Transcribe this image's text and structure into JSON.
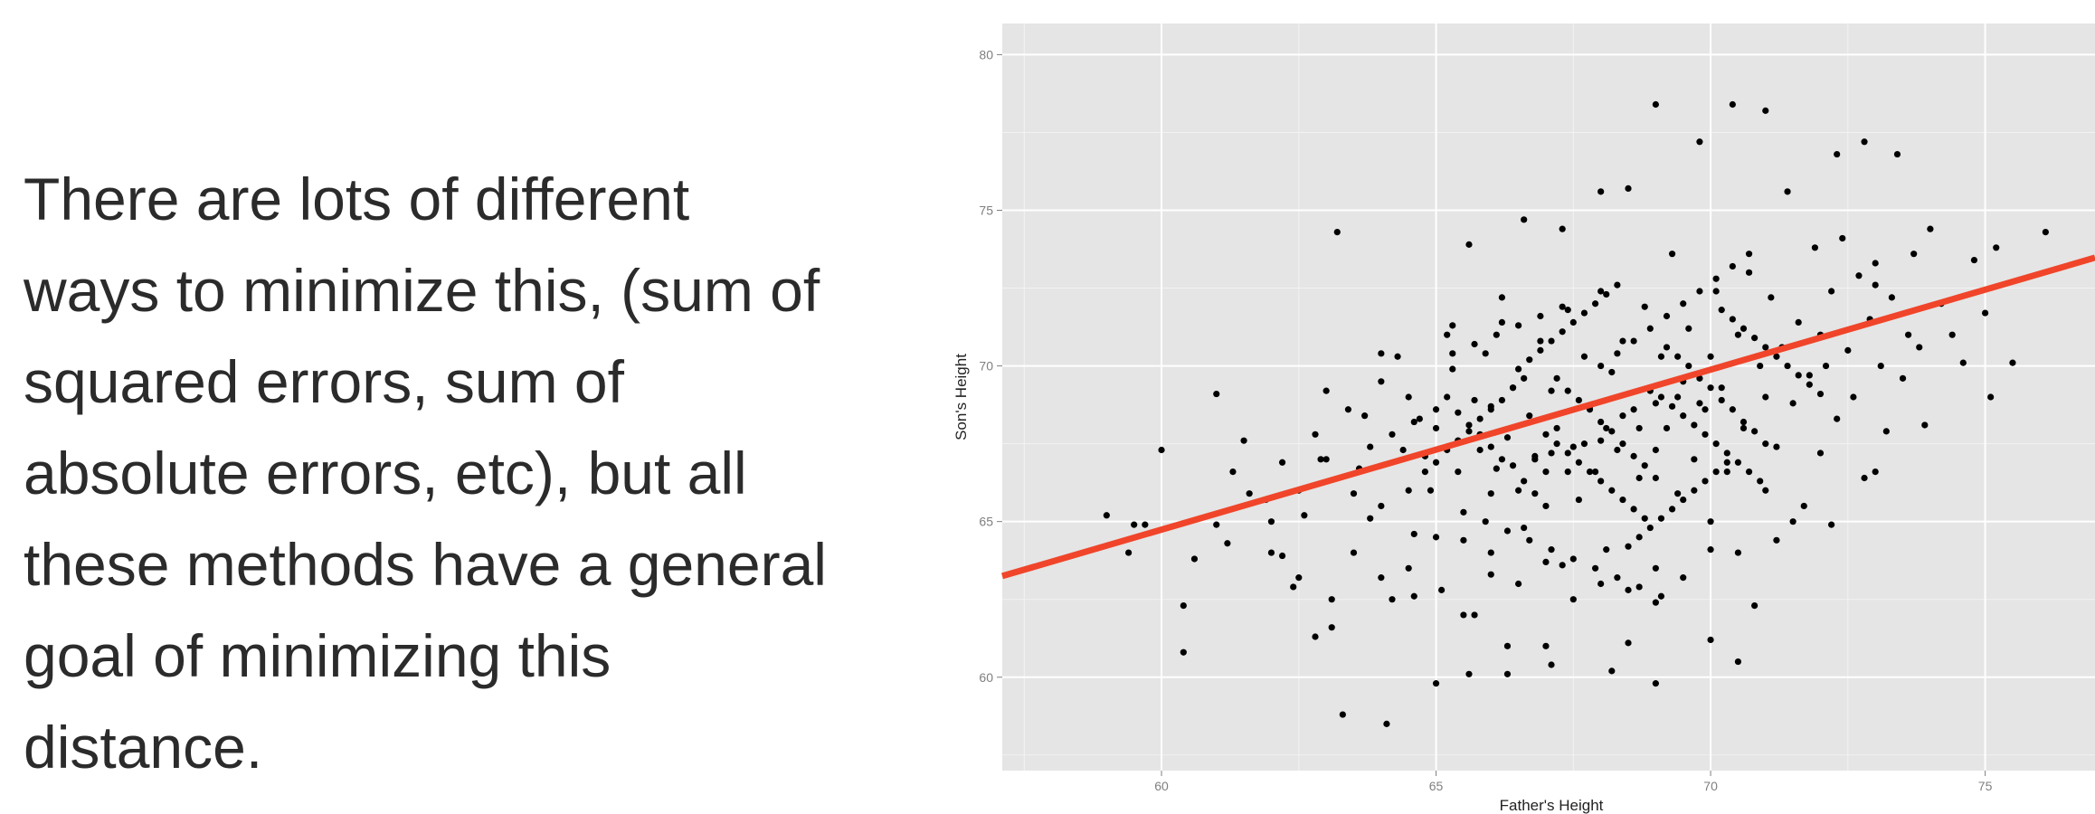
{
  "slide": {
    "text_lines": [
      "There are lots of different",
      "ways to minimize this, (sum of",
      "squared errors, sum of",
      "absolute errors, etc), but all",
      "these methods have a general",
      "goal of minimizing this",
      "distance."
    ]
  },
  "chart_data": {
    "type": "scatter",
    "title": "",
    "xlabel": "Father's Height",
    "ylabel": "Son's Height",
    "xlim": [
      57.1,
      77.0
    ],
    "ylim": [
      57.0,
      81.0
    ],
    "x_ticks": [
      60,
      65,
      70,
      75
    ],
    "y_ticks": [
      60,
      65,
      70,
      75,
      80
    ],
    "grid": true,
    "background_color": "#e5e5e5",
    "point_color": "#000000",
    "regression_line": {
      "color": "#f0452a",
      "intercept": 33.9,
      "slope": 0.514
    },
    "points": [
      [
        59.0,
        65.2
      ],
      [
        59.5,
        64.9
      ],
      [
        59.7,
        64.9
      ],
      [
        59.4,
        64.0
      ],
      [
        60.0,
        67.3
      ],
      [
        60.4,
        62.3
      ],
      [
        60.4,
        60.8
      ],
      [
        61.0,
        69.1
      ],
      [
        61.3,
        66.6
      ],
      [
        61.2,
        64.3
      ],
      [
        61.5,
        67.6
      ],
      [
        61.9,
        65.7
      ],
      [
        62.0,
        64.0
      ],
      [
        62.2,
        63.9
      ],
      [
        62.5,
        63.2
      ],
      [
        62.6,
        65.2
      ],
      [
        62.8,
        61.3
      ],
      [
        62.9,
        67.0
      ],
      [
        63.0,
        69.2
      ],
      [
        63.1,
        62.5
      ],
      [
        63.2,
        74.3
      ],
      [
        63.3,
        58.8
      ],
      [
        63.5,
        65.9
      ],
      [
        63.6,
        66.7
      ],
      [
        63.7,
        68.4
      ],
      [
        63.8,
        65.1
      ],
      [
        64.0,
        70.4
      ],
      [
        64.0,
        63.2
      ],
      [
        64.1,
        58.5
      ],
      [
        64.2,
        62.5
      ],
      [
        64.4,
        67.3
      ],
      [
        64.5,
        69.0
      ],
      [
        64.5,
        66.0
      ],
      [
        64.6,
        64.6
      ],
      [
        64.7,
        68.3
      ],
      [
        64.8,
        67.1
      ],
      [
        64.9,
        66.0
      ],
      [
        65.0,
        68.6
      ],
      [
        65.0,
        59.8
      ],
      [
        65.1,
        62.8
      ],
      [
        65.2,
        71.0
      ],
      [
        65.3,
        69.9
      ],
      [
        65.4,
        67.6
      ],
      [
        65.4,
        66.6
      ],
      [
        65.5,
        64.4
      ],
      [
        65.6,
        73.9
      ],
      [
        65.7,
        68.9
      ],
      [
        65.7,
        62.0
      ],
      [
        65.8,
        67.3
      ],
      [
        65.9,
        70.4
      ],
      [
        66.0,
        68.7
      ],
      [
        66.0,
        65.9
      ],
      [
        66.0,
        63.3
      ],
      [
        66.1,
        66.7
      ],
      [
        66.2,
        71.4
      ],
      [
        66.3,
        67.7
      ],
      [
        66.3,
        60.1
      ],
      [
        66.4,
        69.3
      ],
      [
        66.5,
        66.0
      ],
      [
        66.6,
        74.7
      ],
      [
        66.6,
        64.8
      ],
      [
        66.7,
        68.4
      ],
      [
        66.8,
        67.1
      ],
      [
        66.9,
        70.8
      ],
      [
        67.0,
        66.6
      ],
      [
        67.0,
        61.0
      ],
      [
        67.1,
        69.2
      ],
      [
        67.2,
        68.0
      ],
      [
        67.3,
        63.6
      ],
      [
        67.4,
        71.8
      ],
      [
        67.5,
        67.4
      ],
      [
        67.6,
        65.7
      ],
      [
        67.7,
        70.3
      ],
      [
        67.8,
        68.7
      ],
      [
        67.9,
        66.6
      ],
      [
        68.0,
        72.4
      ],
      [
        68.0,
        67.6
      ],
      [
        68.1,
        64.1
      ],
      [
        68.2,
        69.8
      ],
      [
        68.3,
        67.3
      ],
      [
        68.4,
        70.8
      ],
      [
        68.5,
        75.7
      ],
      [
        68.5,
        61.1
      ],
      [
        68.6,
        68.6
      ],
      [
        68.7,
        66.4
      ],
      [
        68.8,
        71.9
      ],
      [
        68.9,
        69.2
      ],
      [
        69.0,
        67.3
      ],
      [
        69.0,
        59.8
      ],
      [
        69.1,
        70.3
      ],
      [
        69.2,
        68.0
      ],
      [
        69.3,
        73.6
      ],
      [
        69.4,
        65.9
      ],
      [
        69.5,
        69.5
      ],
      [
        69.6,
        71.2
      ],
      [
        69.7,
        67.0
      ],
      [
        69.8,
        77.2
      ],
      [
        69.9,
        68.6
      ],
      [
        70.0,
        70.3
      ],
      [
        70.0,
        64.1
      ],
      [
        70.1,
        72.4
      ],
      [
        70.2,
        69.3
      ],
      [
        70.3,
        66.6
      ],
      [
        70.4,
        78.4
      ],
      [
        70.5,
        71.0
      ],
      [
        70.6,
        68.0
      ],
      [
        70.7,
        73.0
      ],
      [
        70.8,
        62.3
      ],
      [
        70.9,
        70.0
      ],
      [
        71.0,
        69.0
      ],
      [
        71.1,
        72.2
      ],
      [
        71.2,
        67.4
      ],
      [
        71.3,
        70.6
      ],
      [
        71.4,
        75.6
      ],
      [
        71.5,
        68.8
      ],
      [
        71.6,
        71.4
      ],
      [
        71.7,
        65.5
      ],
      [
        71.8,
        69.7
      ],
      [
        71.9,
        73.8
      ],
      [
        72.0,
        71.0
      ],
      [
        72.0,
        67.2
      ],
      [
        72.1,
        70.0
      ],
      [
        72.2,
        72.4
      ],
      [
        72.3,
        68.3
      ],
      [
        72.4,
        74.1
      ],
      [
        72.5,
        70.5
      ],
      [
        72.6,
        69.0
      ],
      [
        72.7,
        72.9
      ],
      [
        72.8,
        66.4
      ],
      [
        72.9,
        71.5
      ],
      [
        73.0,
        73.3
      ],
      [
        73.1,
        70.0
      ],
      [
        73.2,
        67.9
      ],
      [
        73.3,
        72.2
      ],
      [
        73.4,
        76.8
      ],
      [
        73.5,
        69.6
      ],
      [
        73.6,
        71.0
      ],
      [
        73.7,
        73.6
      ],
      [
        73.8,
        70.6
      ],
      [
        73.9,
        68.1
      ],
      [
        74.0,
        74.4
      ],
      [
        74.2,
        72.0
      ],
      [
        74.4,
        71.0
      ],
      [
        74.6,
        70.1
      ],
      [
        74.8,
        73.4
      ],
      [
        75.0,
        71.7
      ],
      [
        75.1,
        69.0
      ],
      [
        75.2,
        73.8
      ],
      [
        75.5,
        70.1
      ],
      [
        76.1,
        74.3
      ],
      [
        72.3,
        76.8
      ],
      [
        72.8,
        77.2
      ],
      [
        73.0,
        72.6
      ],
      [
        71.0,
        78.2
      ],
      [
        69.0,
        78.4
      ],
      [
        68.0,
        75.6
      ],
      [
        67.3,
        74.4
      ],
      [
        66.2,
        72.2
      ],
      [
        65.3,
        71.3
      ],
      [
        64.3,
        70.3
      ],
      [
        64.0,
        69.5
      ],
      [
        63.4,
        68.6
      ],
      [
        62.8,
        67.8
      ],
      [
        62.2,
        66.9
      ],
      [
        61.6,
        65.9
      ],
      [
        61.0,
        64.9
      ],
      [
        60.6,
        63.8
      ],
      [
        62.4,
        62.9
      ],
      [
        63.1,
        61.6
      ],
      [
        64.6,
        62.6
      ],
      [
        65.6,
        60.1
      ],
      [
        66.3,
        61.0
      ],
      [
        67.1,
        60.4
      ],
      [
        68.2,
        60.2
      ],
      [
        69.0,
        62.4
      ],
      [
        70.0,
        61.2
      ],
      [
        70.5,
        60.5
      ],
      [
        71.2,
        64.4
      ],
      [
        72.2,
        64.9
      ],
      [
        73.0,
        66.6
      ],
      [
        65.2,
        69.0
      ],
      [
        65.4,
        68.5
      ],
      [
        65.6,
        68.1
      ],
      [
        65.8,
        67.8
      ],
      [
        66.0,
        67.4
      ],
      [
        66.2,
        67.0
      ],
      [
        66.4,
        66.8
      ],
      [
        66.6,
        66.3
      ],
      [
        66.8,
        65.9
      ],
      [
        67.0,
        65.5
      ],
      [
        67.2,
        69.6
      ],
      [
        67.4,
        69.2
      ],
      [
        67.6,
        68.9
      ],
      [
        67.8,
        68.6
      ],
      [
        68.0,
        68.2
      ],
      [
        68.2,
        67.9
      ],
      [
        68.4,
        67.5
      ],
      [
        68.6,
        67.1
      ],
      [
        68.8,
        66.8
      ],
      [
        69.0,
        66.4
      ],
      [
        69.2,
        70.6
      ],
      [
        69.4,
        70.3
      ],
      [
        69.6,
        70.0
      ],
      [
        69.8,
        69.6
      ],
      [
        70.0,
        69.3
      ],
      [
        70.2,
        68.9
      ],
      [
        70.4,
        68.6
      ],
      [
        70.6,
        68.2
      ],
      [
        70.8,
        67.9
      ],
      [
        71.0,
        67.5
      ],
      [
        66.5,
        69.9
      ],
      [
        66.7,
        70.2
      ],
      [
        66.9,
        70.5
      ],
      [
        67.1,
        70.8
      ],
      [
        67.3,
        71.1
      ],
      [
        67.5,
        71.4
      ],
      [
        67.7,
        71.7
      ],
      [
        67.9,
        72.0
      ],
      [
        68.1,
        72.3
      ],
      [
        68.3,
        72.6
      ],
      [
        68.5,
        64.2
      ],
      [
        68.7,
        64.5
      ],
      [
        68.9,
        64.8
      ],
      [
        69.1,
        65.1
      ],
      [
        69.3,
        65.4
      ],
      [
        69.5,
        65.7
      ],
      [
        69.7,
        66.0
      ],
      [
        69.9,
        66.3
      ],
      [
        70.1,
        66.6
      ],
      [
        70.3,
        66.9
      ],
      [
        64.8,
        66.6
      ],
      [
        65.0,
        66.9
      ],
      [
        65.2,
        67.3
      ],
      [
        65.4,
        67.6
      ],
      [
        65.6,
        67.9
      ],
      [
        65.8,
        68.3
      ],
      [
        66.0,
        68.6
      ],
      [
        66.2,
        68.9
      ],
      [
        66.4,
        69.3
      ],
      [
        66.6,
        69.6
      ],
      [
        67.0,
        67.8
      ],
      [
        67.2,
        67.5
      ],
      [
        67.4,
        67.2
      ],
      [
        67.6,
        66.9
      ],
      [
        67.8,
        66.6
      ],
      [
        68.0,
        66.3
      ],
      [
        68.2,
        66.0
      ],
      [
        68.4,
        65.7
      ],
      [
        68.6,
        65.4
      ],
      [
        68.8,
        65.1
      ],
      [
        69.1,
        69.0
      ],
      [
        69.3,
        68.7
      ],
      [
        69.5,
        68.4
      ],
      [
        69.7,
        68.1
      ],
      [
        69.9,
        67.8
      ],
      [
        70.1,
        67.5
      ],
      [
        70.3,
        67.2
      ],
      [
        70.5,
        66.9
      ],
      [
        70.7,
        66.6
      ],
      [
        70.9,
        66.3
      ],
      [
        70.2,
        71.8
      ],
      [
        70.4,
        71.5
      ],
      [
        70.6,
        71.2
      ],
      [
        70.8,
        70.9
      ],
      [
        71.0,
        70.6
      ],
      [
        71.2,
        70.3
      ],
      [
        71.4,
        70.0
      ],
      [
        71.6,
        69.7
      ],
      [
        71.8,
        69.4
      ],
      [
        72.0,
        69.1
      ],
      [
        65.5,
        65.3
      ],
      [
        65.9,
        65.0
      ],
      [
        66.3,
        64.7
      ],
      [
        66.7,
        64.4
      ],
      [
        67.1,
        64.1
      ],
      [
        67.5,
        63.8
      ],
      [
        67.9,
        63.5
      ],
      [
        68.3,
        63.2
      ],
      [
        68.7,
        62.9
      ],
      [
        69.1,
        62.6
      ],
      [
        63.8,
        67.4
      ],
      [
        64.2,
        67.8
      ],
      [
        64.6,
        68.2
      ],
      [
        65.0,
        68.0
      ],
      [
        65.3,
        70.4
      ],
      [
        65.7,
        70.7
      ],
      [
        66.1,
        71.0
      ],
      [
        66.5,
        71.3
      ],
      [
        66.9,
        71.6
      ],
      [
        67.3,
        71.9
      ],
      [
        68.0,
        70.0
      ],
      [
        68.3,
        70.4
      ],
      [
        68.6,
        70.8
      ],
      [
        68.9,
        71.2
      ],
      [
        69.2,
        71.6
      ],
      [
        69.5,
        72.0
      ],
      [
        69.8,
        72.4
      ],
      [
        70.1,
        72.8
      ],
      [
        70.4,
        73.2
      ],
      [
        70.7,
        73.6
      ],
      [
        62.0,
        65.0
      ],
      [
        62.5,
        66.0
      ],
      [
        63.0,
        67.0
      ],
      [
        63.5,
        64.0
      ],
      [
        64.0,
        65.5
      ],
      [
        64.5,
        63.5
      ],
      [
        65.0,
        64.5
      ],
      [
        65.5,
        62.0
      ],
      [
        66.0,
        64.0
      ],
      [
        66.5,
        63.0
      ],
      [
        67.0,
        63.7
      ],
      [
        67.5,
        62.5
      ],
      [
        68.0,
        63.0
      ],
      [
        68.5,
        62.8
      ],
      [
        69.0,
        63.5
      ],
      [
        69.5,
        63.2
      ],
      [
        70.0,
        65.0
      ],
      [
        70.5,
        64.0
      ],
      [
        71.0,
        66.0
      ],
      [
        71.5,
        65.0
      ],
      [
        66.8,
        67.0
      ],
      [
        67.1,
        67.2
      ],
      [
        67.4,
        66.6
      ],
      [
        67.7,
        67.5
      ],
      [
        68.1,
        68.0
      ],
      [
        68.4,
        68.4
      ],
      [
        68.7,
        68.0
      ],
      [
        69.0,
        68.8
      ],
      [
        69.4,
        69.0
      ],
      [
        69.8,
        68.8
      ]
    ]
  }
}
